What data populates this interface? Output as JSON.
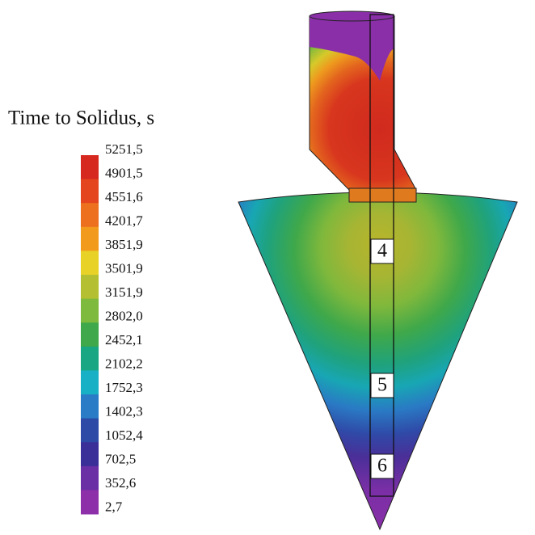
{
  "legend": {
    "title": "Time to Solidus, s",
    "labels": [
      "5251,5",
      "4901,5",
      "4551,6",
      "4201,7",
      "3851,9",
      "3501,9",
      "3151,9",
      "2802,0",
      "2452,1",
      "2102,2",
      "1752,3",
      "1402,3",
      "1052,4",
      "702,5",
      "352,6",
      "2,7"
    ]
  },
  "sections": [
    {
      "label": "4"
    },
    {
      "label": "5"
    },
    {
      "label": "6"
    }
  ]
}
